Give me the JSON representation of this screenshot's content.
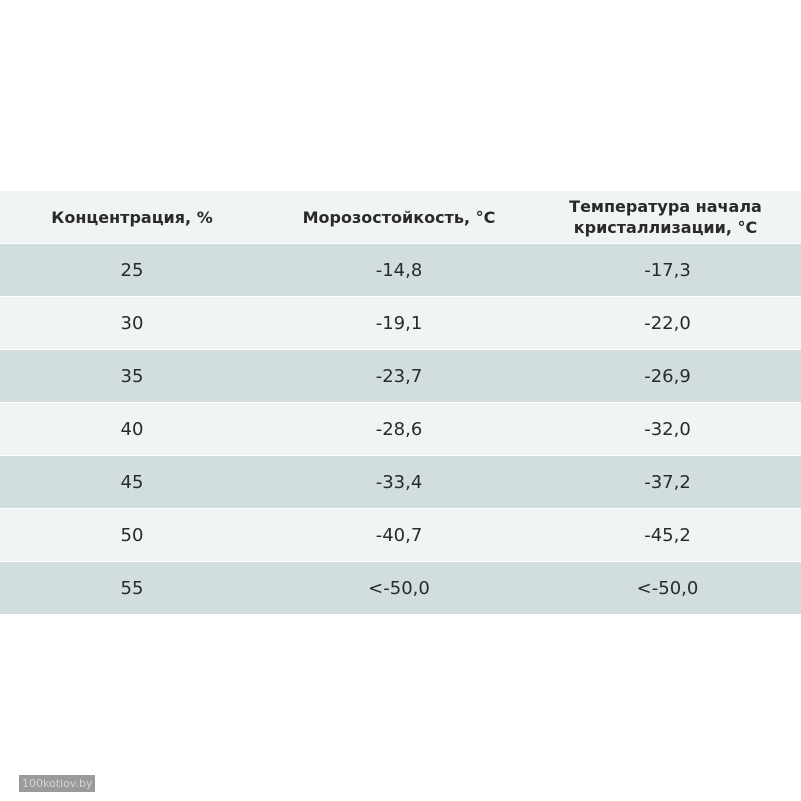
{
  "table": {
    "headers": [
      "Концентрация, %",
      "Морозостойкость, °C",
      "Температура начала кристаллизации, °C"
    ],
    "rows": [
      [
        "25",
        "-14,8",
        "-17,3"
      ],
      [
        "30",
        "-19,1",
        "-22,0"
      ],
      [
        "35",
        "-23,7",
        "-26,9"
      ],
      [
        "40",
        "-28,6",
        "-32,0"
      ],
      [
        "45",
        "-33,4",
        "-37,2"
      ],
      [
        "50",
        "-40,7",
        "-45,2"
      ],
      [
        "55",
        "<-50,0",
        "<-50,0"
      ]
    ],
    "colors": {
      "header_bg": "#f0f4f5",
      "row_odd_bg": "#d2dede",
      "row_even_bg": "#f0f4f5",
      "text": "#2a2a2a"
    }
  },
  "watermark": {
    "text": "100kotlov.by"
  }
}
